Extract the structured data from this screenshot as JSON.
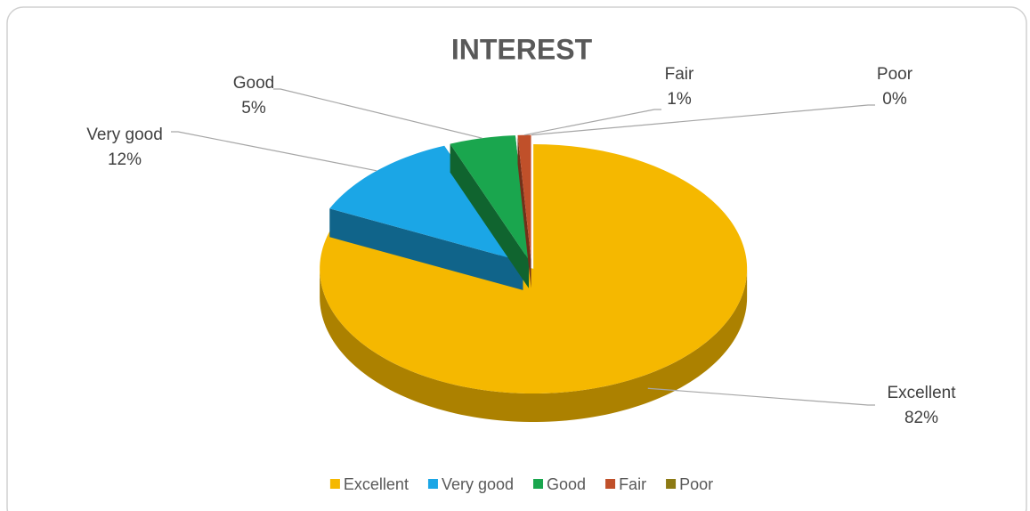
{
  "chart_data": {
    "type": "pie",
    "title": "INTEREST",
    "categories": [
      "Excellent",
      "Very good",
      "Good",
      "Fair",
      "Poor"
    ],
    "values": [
      82,
      12,
      5,
      1,
      0
    ],
    "value_labels": [
      "82%",
      "12%",
      "5%",
      "1%",
      "0%"
    ],
    "colors": [
      "#f5b800",
      "#1ba6e6",
      "#1aa64e",
      "#c0502a",
      "#8c7a14"
    ],
    "legend": "bottom"
  }
}
